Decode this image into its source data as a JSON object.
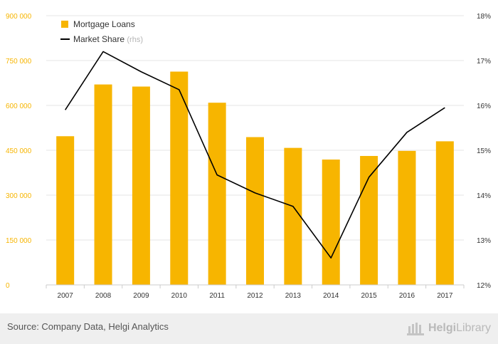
{
  "chart_data": {
    "type": "bar",
    "categories": [
      "2007",
      "2008",
      "2009",
      "2010",
      "2011",
      "2012",
      "2013",
      "2014",
      "2015",
      "2016",
      "2017"
    ],
    "series": [
      {
        "name": "Mortgage Loans",
        "type": "bar",
        "axis": "left",
        "color": "#f7b500",
        "values": [
          497000,
          670000,
          663000,
          713000,
          609000,
          494000,
          458000,
          419000,
          431000,
          448000,
          480000
        ]
      },
      {
        "name": "Market Share",
        "name_suffix": "(rhs)",
        "type": "line",
        "axis": "right",
        "color": "#000000",
        "values": [
          15.9,
          17.2,
          16.75,
          16.35,
          14.45,
          14.05,
          13.75,
          12.6,
          14.4,
          15.4,
          15.95
        ]
      }
    ],
    "y_left": {
      "ylim": [
        0,
        900000
      ],
      "tick_labels": [
        "0",
        "150 000",
        "300 000",
        "450 000",
        "600 000",
        "750 000",
        "900 000"
      ]
    },
    "y_right": {
      "ylim": [
        12,
        18
      ],
      "tick_labels": [
        "12%",
        "13%",
        "14%",
        "15%",
        "16%",
        "17%",
        "18%"
      ]
    },
    "grid": true,
    "legend": "top-left"
  },
  "footer": {
    "source": "Source: Company Data, Helgi Analytics",
    "logo_part1": "Helgi",
    "logo_part2": "Library"
  },
  "colors": {
    "bar": "#f7b500",
    "line": "#000000",
    "axis_text": "#f7b500",
    "grid": "#e6e6e6"
  }
}
